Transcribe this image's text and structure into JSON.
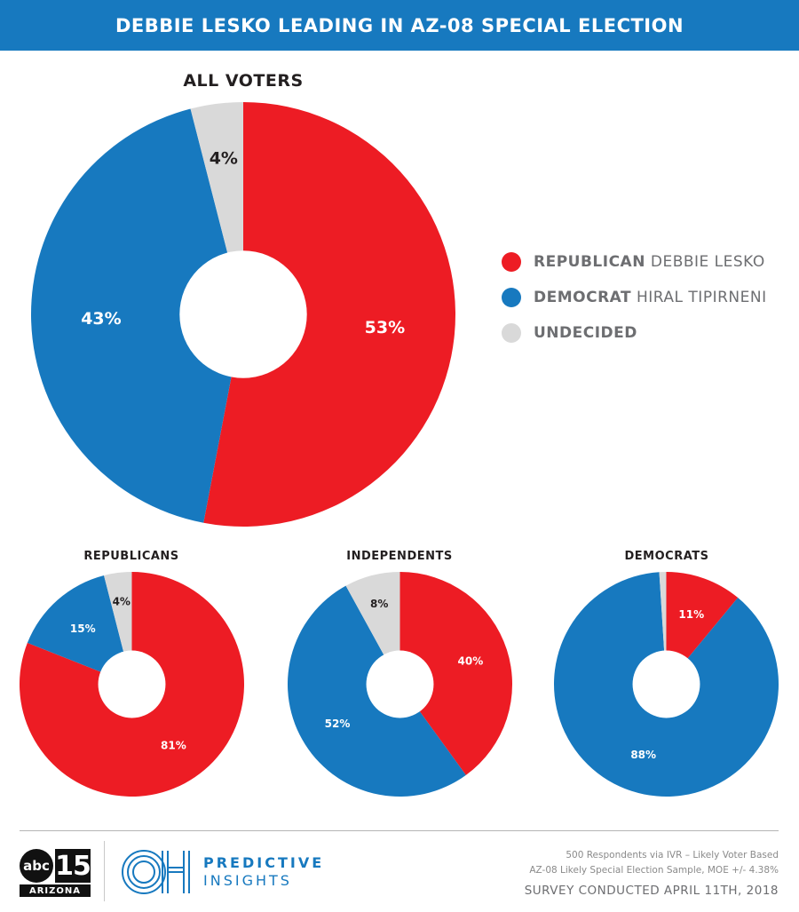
{
  "header": {
    "title": "DEBBIE LESKO LEADING IN AZ-08 SPECIAL ELECTION"
  },
  "colors": {
    "republican": "#ed1c24",
    "democrat": "#1779bf",
    "undecided": "#d9d9d9",
    "header_bg": "#1779bf"
  },
  "legend": [
    {
      "party": "REPUBLICAN",
      "name": "DEBBIE LESKO",
      "color": "#ed1c24"
    },
    {
      "party": "DEMOCRAT",
      "name": "HIRAL TIPIRNENI",
      "color": "#1779bf"
    },
    {
      "party": "UNDECIDED",
      "name": "",
      "color": "#d9d9d9"
    }
  ],
  "chart_data": [
    {
      "type": "pie",
      "title": "ALL VOTERS",
      "categories": [
        "Republican Debbie Lesko",
        "Democrat Hiral Tipirneni",
        "Undecided"
      ],
      "values": [
        53,
        43,
        4
      ],
      "labels": [
        "53%",
        "43%",
        "4%"
      ],
      "colors": [
        "#ed1c24",
        "#1779bf",
        "#d9d9d9"
      ]
    },
    {
      "type": "pie",
      "title": "REPUBLICANS",
      "categories": [
        "Republican Debbie Lesko",
        "Democrat Hiral Tipirneni",
        "Undecided"
      ],
      "values": [
        81,
        15,
        4
      ],
      "labels": [
        "81%",
        "15%",
        "4%"
      ],
      "colors": [
        "#ed1c24",
        "#1779bf",
        "#d9d9d9"
      ]
    },
    {
      "type": "pie",
      "title": "INDEPENDENTS",
      "categories": [
        "Republican Debbie Lesko",
        "Democrat Hiral Tipirneni",
        "Undecided"
      ],
      "values": [
        40,
        52,
        8
      ],
      "labels": [
        "40%",
        "52%",
        "8%"
      ],
      "colors": [
        "#ed1c24",
        "#1779bf",
        "#d9d9d9"
      ]
    },
    {
      "type": "pie",
      "title": "DEMOCRATS",
      "categories": [
        "Republican Debbie Lesko",
        "Democrat Hiral Tipirneni",
        "Undecided"
      ],
      "values": [
        11,
        88,
        1
      ],
      "labels": [
        "11%",
        "88%",
        ""
      ],
      "colors": [
        "#ed1c24",
        "#1779bf",
        "#d9d9d9"
      ]
    }
  ],
  "footer": {
    "abc_logo": {
      "brand": "abc",
      "channel": "15",
      "region": "ARIZONA"
    },
    "oh_logo": "OH",
    "brand_line1": "PREDICTIVE",
    "brand_line2": "INSIGHTS",
    "note_line1": "500 Respondents via IVR – Likely Voter Based",
    "note_line2": "AZ-08 Likely Special Election Sample, MOE +/- 4.38%",
    "survey": "SURVEY CONDUCTED APRIL 11TH, 2018"
  }
}
